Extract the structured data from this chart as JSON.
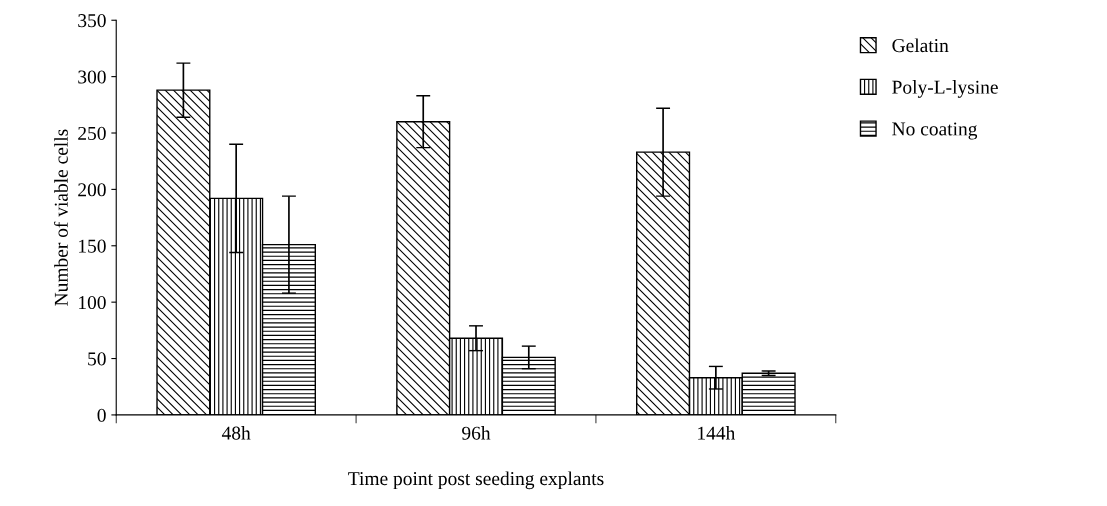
{
  "chart_data": {
    "type": "bar",
    "xlabel": "Time point post seeding explants",
    "ylabel": "Number of viable cells",
    "categories": [
      "48h",
      "96h",
      "144h"
    ],
    "series": [
      {
        "name": "Gelatin",
        "color": "#000000",
        "values": [
          288,
          260,
          233
        ],
        "errors": [
          24,
          23,
          39
        ]
      },
      {
        "name": "Poly-L-lysine",
        "color": "#000000",
        "values": [
          192,
          68,
          33
        ],
        "errors": [
          48,
          11,
          10
        ]
      },
      {
        "name": "No coating",
        "color": "#000000",
        "values": [
          151,
          51,
          37
        ],
        "errors": [
          43,
          10,
          2
        ]
      }
    ],
    "ylim": [
      0,
      350
    ],
    "yticks": [
      0,
      50,
      100,
      150,
      200,
      250,
      300,
      350
    ],
    "grid": false,
    "legend": "top right"
  }
}
